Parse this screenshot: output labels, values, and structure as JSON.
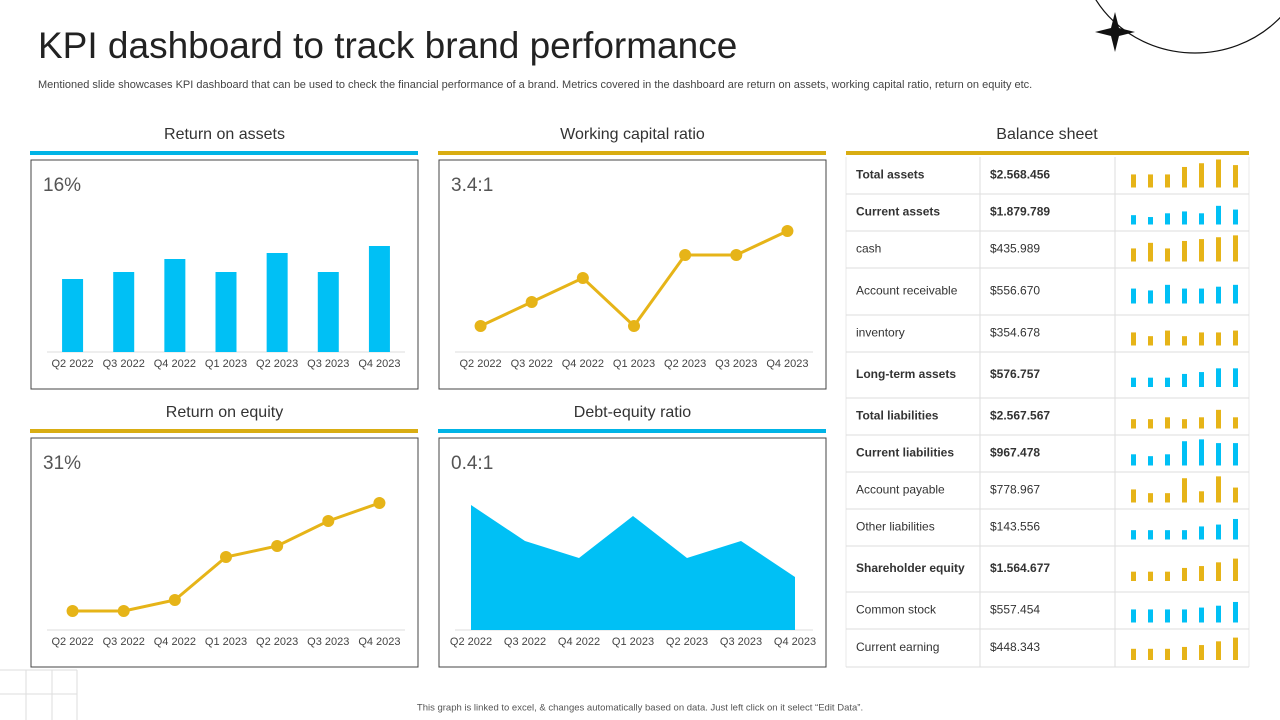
{
  "header": {
    "title": "KPI dashboard to track brand performance",
    "subtitle": "Mentioned slide showcases KPI dashboard that can be used to check the financial performance of a brand. Metrics covered in the dashboard are return on assets, working capital ratio, return on equity etc."
  },
  "footer": "This graph is linked to excel, & changes automatically based on data. Just left click on it select “Edit Data”.",
  "chart_data": [
    {
      "type": "bar",
      "title": "Return on assets",
      "kpi": "16%",
      "color": "#00c0f5",
      "accent": "#00b4e6",
      "categories": [
        "Q2 2022",
        "Q3 2022",
        "Q4 2022",
        "Q1 2023",
        "Q2 2023",
        "Q3 2023",
        "Q4 2023"
      ],
      "values": [
        73,
        80,
        93,
        80,
        99,
        80,
        106
      ],
      "ylim": [
        0,
        150
      ]
    },
    {
      "type": "line",
      "title": "Working capital ratio",
      "kpi": "3.4:1",
      "color": "#e6b418",
      "accent": "#d9ad12",
      "categories": [
        "Q2 2022",
        "Q3 2022",
        "Q4 2022",
        "Q1 2023",
        "Q2 2023",
        "Q3 2023",
        "Q4 2023"
      ],
      "values": [
        26,
        50,
        74,
        26,
        97,
        97,
        121
      ],
      "ylim": [
        0,
        150
      ]
    },
    {
      "type": "line",
      "title": "Return on equity",
      "kpi": "31%",
      "color": "#e6b418",
      "accent": "#d9ad12",
      "categories": [
        "Q2 2022",
        "Q3 2022",
        "Q4 2022",
        "Q1 2023",
        "Q2 2023",
        "Q3 2023",
        "Q4 2023"
      ],
      "values": [
        19,
        19,
        30,
        73,
        84,
        109,
        127
      ],
      "ylim": [
        0,
        150
      ]
    },
    {
      "type": "area",
      "title": "Debt-equity ratio",
      "kpi": "0.4:1",
      "color": "#00c0f5",
      "accent": "#00b4e6",
      "categories": [
        "Q2 2022",
        "Q3 2022",
        "Q4 2022",
        "Q1 2023",
        "Q2 2023",
        "Q3 2023",
        "Q4 2023"
      ],
      "values": [
        125,
        89,
        72,
        114,
        72,
        89,
        53
      ],
      "ylim": [
        0,
        150
      ]
    }
  ],
  "balance_sheet": {
    "title": "Balance sheet",
    "accent": "#d9ad12",
    "ylim": [
      0,
      30
    ],
    "colors": [
      "#e6b418",
      "#00c0f5"
    ],
    "rows": [
      {
        "label": "Total assets",
        "value": "$2.568.456",
        "bold": true,
        "values": [
          14,
          14,
          14,
          22,
          26,
          30,
          24
        ]
      },
      {
        "label": "Current assets",
        "value": "$1.879.789",
        "bold": true,
        "values": [
          10,
          8,
          12,
          14,
          12,
          20,
          16
        ]
      },
      {
        "label": "cash",
        "value": "$435.989",
        "bold": false,
        "values": [
          14,
          20,
          14,
          22,
          24,
          26,
          28
        ]
      },
      {
        "label": "Account receivable",
        "value": "$556.670",
        "bold": false,
        "values": [
          16,
          14,
          20,
          16,
          16,
          18,
          20
        ]
      },
      {
        "label": "inventory",
        "value": "$354.678",
        "bold": false,
        "values": [
          14,
          10,
          16,
          10,
          14,
          14,
          16
        ]
      },
      {
        "label": "Long-term assets",
        "value": "$576.757",
        "bold": true,
        "values": [
          10,
          10,
          10,
          14,
          16,
          20,
          20
        ]
      },
      {
        "label": "Total liabilities",
        "value": "$2.567.567",
        "bold": true,
        "values": [
          10,
          10,
          12,
          10,
          12,
          20,
          12
        ]
      },
      {
        "label": "Current liabilities",
        "value": "$967.478",
        "bold": true,
        "values": [
          12,
          10,
          12,
          26,
          28,
          24,
          24
        ]
      },
      {
        "label": "Account payable",
        "value": "$778.967",
        "bold": false,
        "values": [
          14,
          10,
          10,
          26,
          12,
          28,
          16
        ]
      },
      {
        "label": "Other liabilities",
        "value": "$143.556",
        "bold": false,
        "values": [
          10,
          10,
          10,
          10,
          14,
          16,
          22
        ]
      },
      {
        "label": "Shareholder equity",
        "value": "$1.564.677",
        "bold": true,
        "values": [
          10,
          10,
          10,
          14,
          16,
          20,
          24
        ]
      },
      {
        "label": "Common stock",
        "value": "$557.454",
        "bold": false,
        "values": [
          14,
          14,
          14,
          14,
          16,
          18,
          22
        ]
      },
      {
        "label": "Current earning",
        "value": "$448.343",
        "bold": false,
        "values": [
          12,
          12,
          12,
          14,
          16,
          20,
          24
        ]
      }
    ]
  }
}
